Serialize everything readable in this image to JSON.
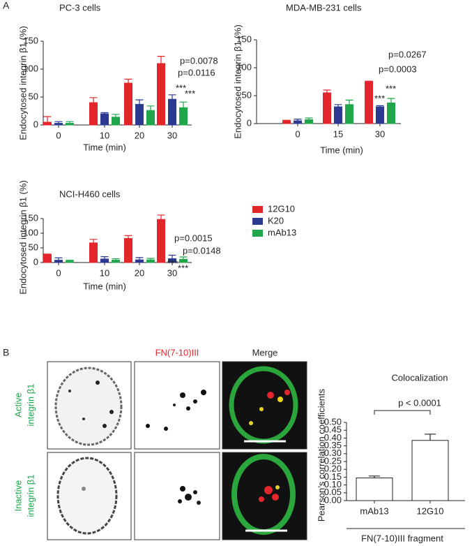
{
  "figure": {
    "panels": [
      "A",
      "B"
    ],
    "image_columns": [
      "FN(7-10)III",
      "Merge"
    ],
    "image_rows": [
      [
        "Active",
        "integrin β1"
      ],
      [
        "Inactive",
        "integrin β1"
      ]
    ]
  },
  "chart_data": [
    {
      "type": "bar",
      "title": "PC-3 cells",
      "x_label": "Time (min)",
      "y_label": "Endocytosed integrin β1 (%)",
      "categories": [
        "0",
        "10",
        "20",
        "30"
      ],
      "series": [
        {
          "name": "12G10",
          "color": "#e3262c",
          "values": [
            5,
            40,
            75,
            110
          ],
          "errors": [
            10,
            9,
            7,
            13
          ]
        },
        {
          "name": "K20",
          "color": "#2b3990",
          "values": [
            3,
            20,
            37,
            46
          ],
          "errors": [
            3,
            2,
            8,
            8
          ]
        },
        {
          "name": "mAb13",
          "color": "#1fa64a",
          "values": [
            3,
            14,
            26,
            31
          ],
          "errors": [
            3,
            5,
            8,
            10
          ]
        }
      ],
      "ylim": [
        0,
        150
      ],
      "yticks": [
        0,
        50,
        100,
        150
      ],
      "annotations": [
        "p=0.0078",
        "p=0.0116",
        "***",
        "***"
      ]
    },
    {
      "type": "bar",
      "title": "MDA-MB-231 cells",
      "x_label": "Time (min)",
      "y_label": "Endocytosed integrin β1 (%)",
      "categories": [
        "0",
        "15",
        "30"
      ],
      "series": [
        {
          "name": "12G10",
          "color": "#e3262c",
          "values": [
            5,
            55,
            75
          ],
          "errors": [
            1,
            5,
            1
          ]
        },
        {
          "name": "K20",
          "color": "#2b3990",
          "values": [
            5,
            30,
            30
          ],
          "errors": [
            3,
            4,
            2
          ]
        },
        {
          "name": "mAb13",
          "color": "#1fa64a",
          "values": [
            7,
            34,
            37
          ],
          "errors": [
            3,
            8,
            8
          ]
        }
      ],
      "ylim": [
        0,
        150
      ],
      "yticks": [
        0,
        50,
        100,
        150
      ],
      "annotations": [
        "p=0.0267",
        "p=0.0003",
        "***",
        "***"
      ]
    },
    {
      "type": "bar",
      "title": "NCI-H460 cells",
      "x_label": "Time (min)",
      "y_label": "Endocytosed integrin β1 (%)",
      "categories": [
        "0",
        "10",
        "20",
        "30"
      ],
      "series": [
        {
          "name": "12G10",
          "color": "#e3262c",
          "values": [
            27,
            67,
            82,
            147
          ],
          "errors": [
            2,
            12,
            10,
            15
          ]
        },
        {
          "name": "K20",
          "color": "#2b3990",
          "values": [
            8,
            12,
            9,
            13
          ],
          "errors": [
            8,
            8,
            8,
            12
          ]
        },
        {
          "name": "mAb13",
          "color": "#1fa64a",
          "values": [
            5,
            8,
            9,
            11
          ],
          "errors": [
            3,
            5,
            5,
            8
          ]
        }
      ],
      "ylim": [
        0,
        150
      ],
      "yticks": [
        0,
        50,
        100,
        150
      ],
      "legend": "right",
      "annotations": [
        "p=0.0015",
        "p=0.0148",
        "***",
        "***"
      ]
    },
    {
      "type": "bar",
      "title": "Colocalization",
      "x_label": "FN(7-10)III fragment",
      "y_label": "Pearson’s correlation coefficients",
      "categories": [
        "mAb13",
        "12G10"
      ],
      "values": [
        0.145,
        0.385
      ],
      "errors": [
        0.012,
        0.04
      ],
      "color": "#ffffff",
      "edgecolor": "#222222",
      "ylim": [
        0,
        0.5
      ],
      "yticks": [
        {
          "value": 0,
          "label": "0.00"
        },
        {
          "value": 0.05,
          "label": "0.05"
        },
        {
          "value": 0.1,
          "label": "0.10"
        },
        {
          "value": 0.15,
          "label": "0.15"
        },
        {
          "value": 0.2,
          "label": "0.20"
        },
        {
          "value": 0.25,
          "label": "0.25"
        },
        {
          "value": 0.3,
          "label": "0.30"
        },
        {
          "value": 0.35,
          "label": "0.35"
        },
        {
          "value": 0.4,
          "label": "0.40"
        },
        {
          "value": 0.45,
          "label": "0.45"
        },
        {
          "value": 0.5,
          "label": "0.50"
        }
      ],
      "annotations": [
        "p < 0.0001"
      ]
    }
  ]
}
